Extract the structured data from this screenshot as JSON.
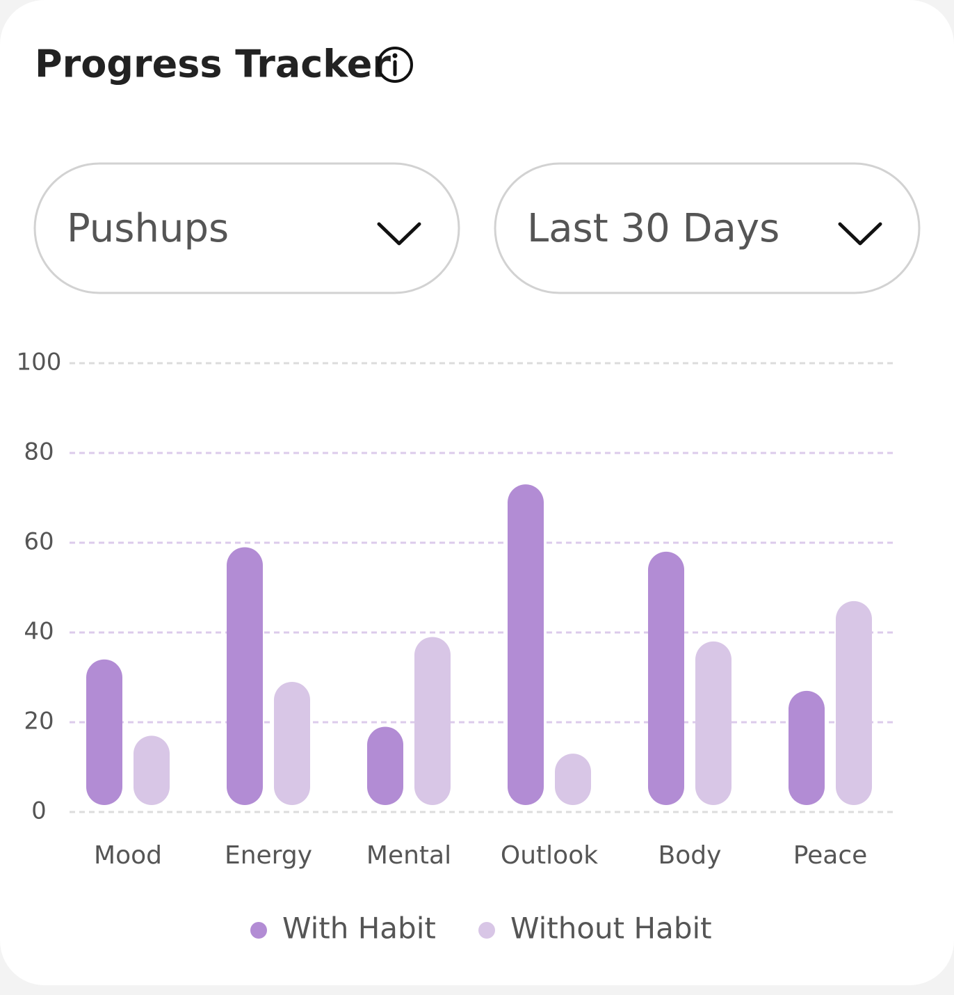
{
  "header": {
    "title": "Progress Tracker"
  },
  "filters": {
    "habit": "Pushups",
    "period": "Last 30 Days"
  },
  "chart_data": {
    "type": "bar",
    "categories": [
      "Mood",
      "Energy",
      "Mental",
      "Outlook",
      "Body",
      "Peace"
    ],
    "series": [
      {
        "name": "With Habit",
        "color": "#b28cd4",
        "values": [
          34,
          59,
          19,
          73,
          58,
          27
        ]
      },
      {
        "name": "Without Habit",
        "color": "#d8c6e6",
        "values": [
          17,
          29,
          39,
          13,
          38,
          47
        ]
      }
    ],
    "ylim": [
      0,
      100
    ],
    "yticks": [
      0,
      20,
      40,
      60,
      80,
      100
    ],
    "grid": true
  }
}
